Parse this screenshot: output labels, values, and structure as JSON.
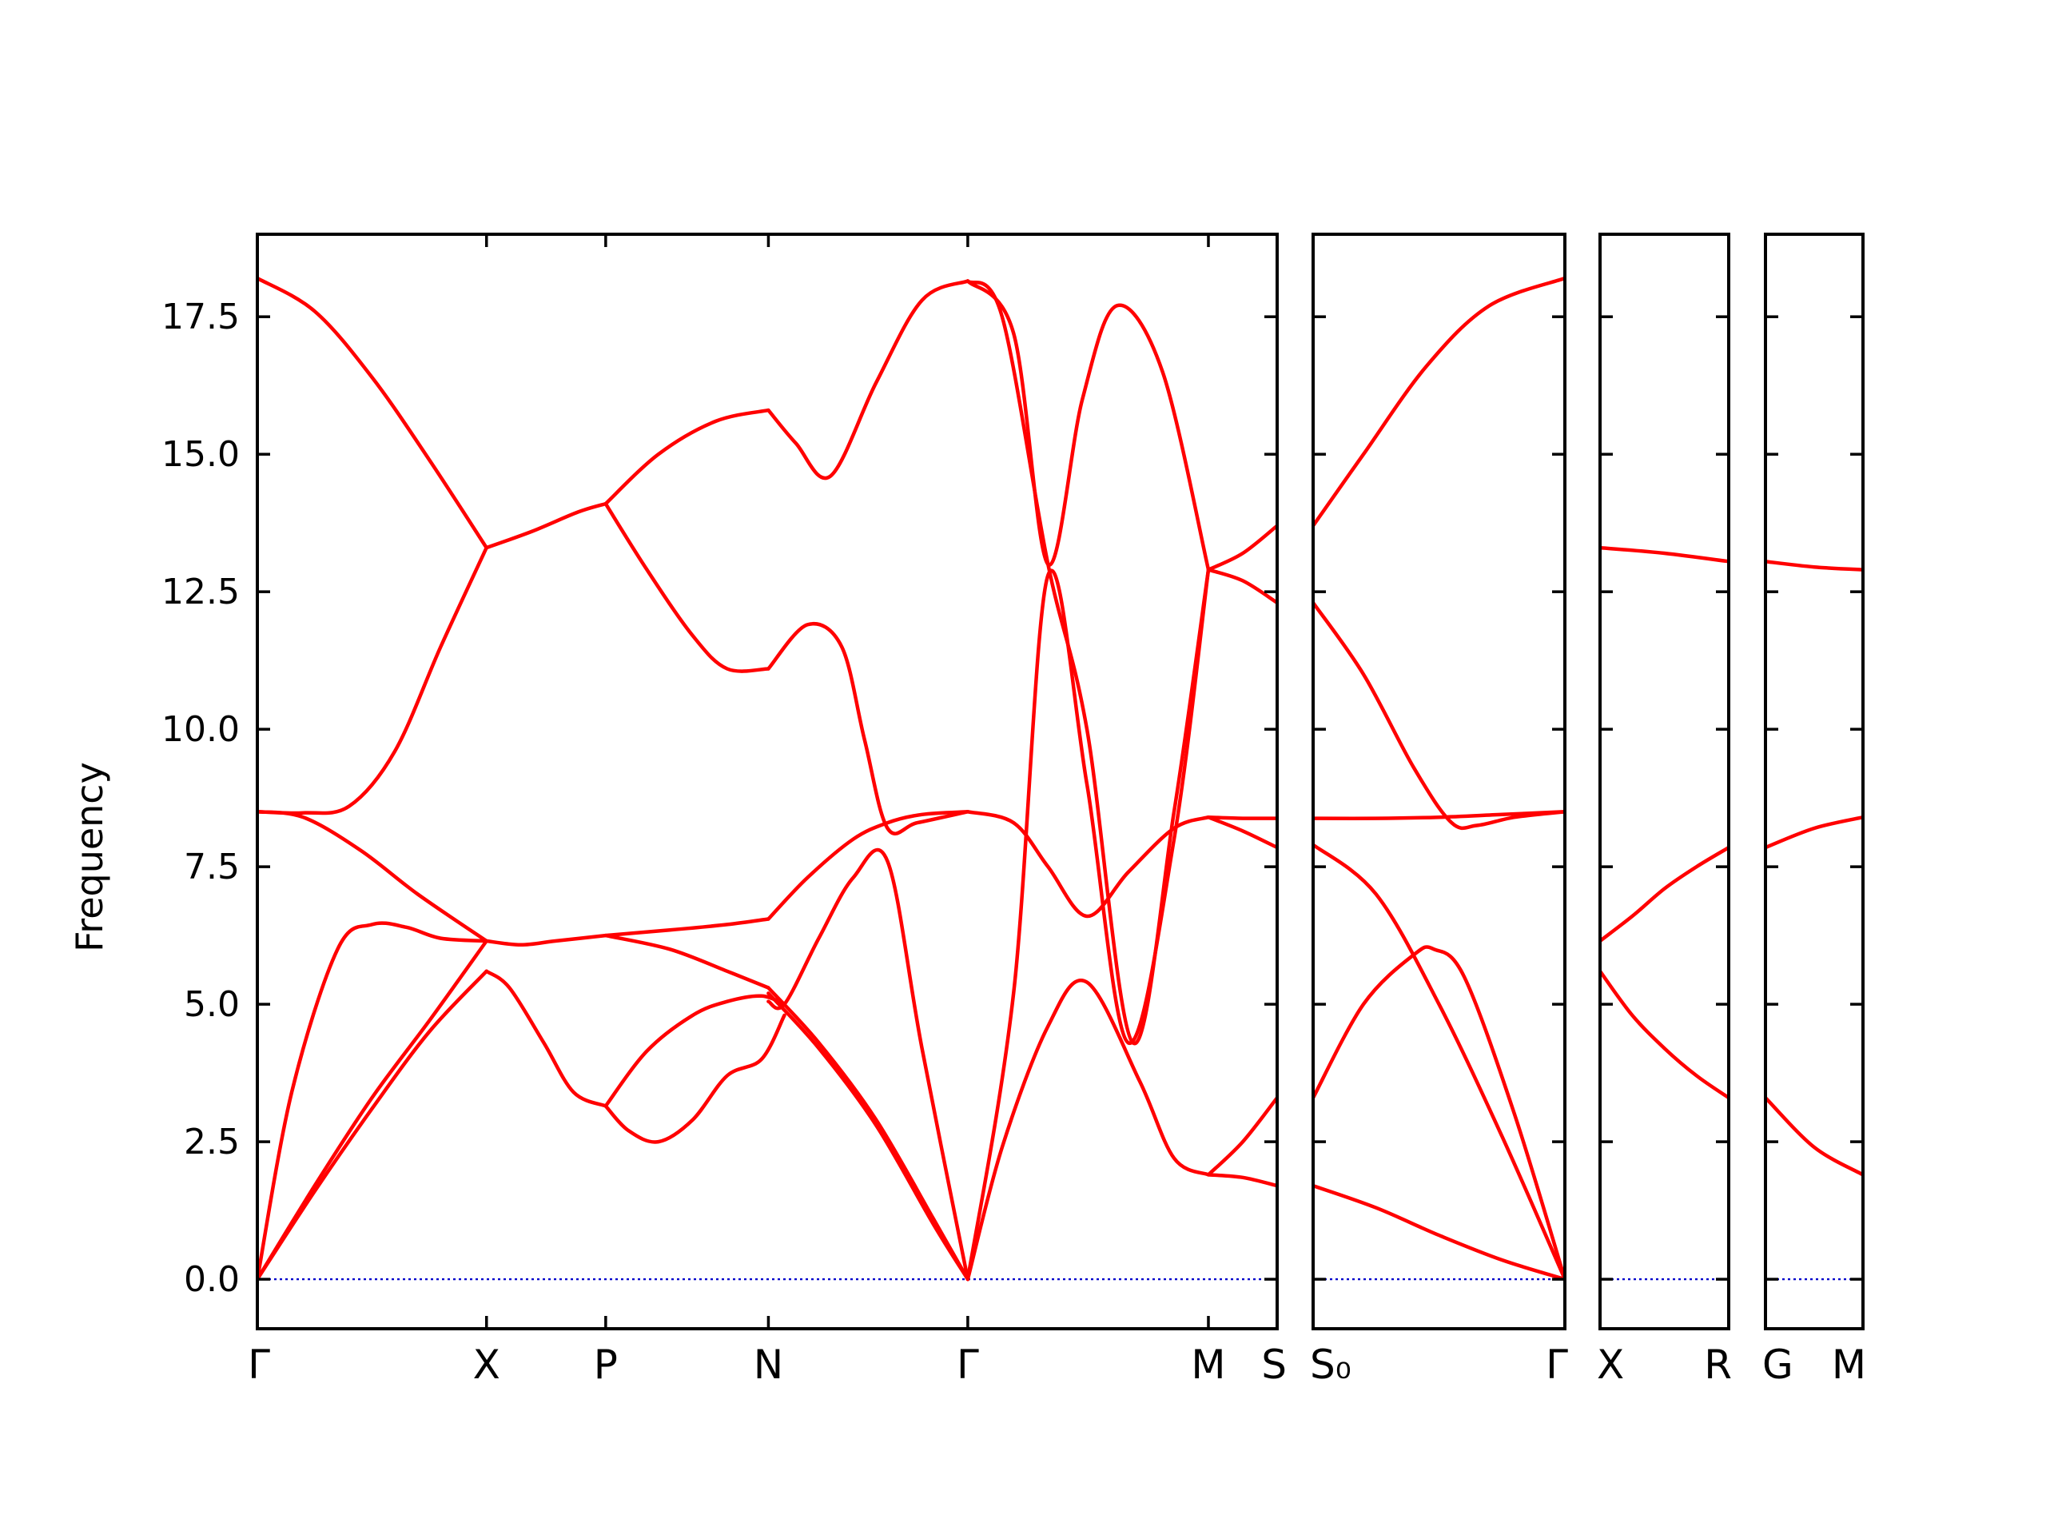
{
  "chart_data": {
    "type": "line",
    "ylabel": "Frequency",
    "xlabel": "",
    "title": "",
    "ylim": [
      -0.9,
      19.0
    ],
    "yticks": [
      "0.0",
      "2.5",
      "5.0",
      "7.5",
      "10.0",
      "12.5",
      "15.0",
      "17.5"
    ],
    "ytick_values": [
      0.0,
      2.5,
      5.0,
      7.5,
      10.0,
      12.5,
      15.0,
      17.5
    ],
    "grid": false,
    "colors": {
      "bands": "#ff0000",
      "zero_line": "#0000cc",
      "axes": "#000000"
    },
    "panels": [
      {
        "kpoint_labels": [
          "Γ",
          "X",
          "P",
          "N",
          "Γ",
          "M",
          "S"
        ],
        "kpoint_positions": [
          0,
          1.0,
          1.52,
          2.23,
          3.1,
          4.15,
          4.45
        ],
        "xlim": [
          0,
          4.45
        ],
        "bands": [
          {
            "x": [
              0,
              0.25,
              0.5,
              0.75,
              1.0
            ],
            "y": [
              0,
              1.6,
              3.1,
              4.5,
              5.6
            ]
          },
          {
            "x": [
              0,
              0.25,
              0.5,
              0.75,
              1.0
            ],
            "y": [
              0,
              1.7,
              3.3,
              4.7,
              6.15
            ]
          },
          {
            "x": [
              0,
              0.15,
              0.35,
              0.5,
              0.65,
              0.8,
              1.0
            ],
            "y": [
              0,
              3.4,
              6.0,
              6.45,
              6.4,
              6.2,
              6.15
            ]
          },
          {
            "x": [
              0,
              0.2,
              0.45,
              0.7,
              1.0
            ],
            "y": [
              8.5,
              8.4,
              7.8,
              7.0,
              6.15
            ]
          },
          {
            "x": [
              0,
              0.2,
              0.4,
              0.6,
              0.8,
              1.0
            ],
            "y": [
              8.5,
              8.48,
              8.6,
              9.6,
              11.5,
              13.3
            ]
          },
          {
            "x": [
              0,
              0.25,
              0.5,
              0.75,
              1.0
            ],
            "y": [
              18.2,
              17.6,
              16.4,
              14.9,
              13.3
            ]
          },
          {
            "x": [
              1.0,
              1.1,
              1.25,
              1.38,
              1.52
            ],
            "y": [
              5.6,
              5.3,
              4.3,
              3.4,
              3.15
            ]
          },
          {
            "x": [
              1.0,
              1.15,
              1.3,
              1.52
            ],
            "y": [
              6.15,
              6.08,
              6.15,
              6.25
            ]
          },
          {
            "x": [
              1.0,
              1.2,
              1.4,
              1.52
            ],
            "y": [
              13.3,
              13.6,
              13.95,
              14.1
            ]
          },
          {
            "x": [
              1.52,
              1.62,
              1.75,
              1.9,
              2.05,
              2.2,
              2.3
            ],
            "y": [
              3.15,
              2.7,
              2.5,
              2.9,
              3.7,
              4.0,
              4.8
            ]
          },
          {
            "x": [
              1.52,
              1.7,
              1.9,
              2.05,
              2.2,
              2.3
            ],
            "y": [
              3.15,
              4.15,
              4.8,
              5.05,
              5.15,
              5.0
            ]
          },
          {
            "x": [
              1.52,
              1.8,
              2.05,
              2.23
            ],
            "y": [
              6.25,
              6.0,
              5.6,
              5.3
            ]
          },
          {
            "x": [
              1.52,
              1.8,
              2.05,
              2.23
            ],
            "y": [
              6.25,
              6.35,
              6.45,
              6.55
            ]
          },
          {
            "x": [
              1.52,
              1.7,
              1.9,
              2.05,
              2.23
            ],
            "y": [
              14.1,
              12.9,
              11.7,
              11.1,
              11.1
            ]
          },
          {
            "x": [
              1.52,
              1.75,
              2.0,
              2.23
            ],
            "y": [
              14.1,
              15.0,
              15.6,
              15.8
            ]
          },
          {
            "x": [
              2.23,
              2.45,
              2.7,
              2.95,
              3.1
            ],
            "y": [
              5.2,
              4.2,
              2.8,
              1.0,
              0
            ]
          },
          {
            "x": [
              2.23,
              2.45,
              2.7,
              2.95,
              3.1
            ],
            "y": [
              5.3,
              4.3,
              2.9,
              1.1,
              0
            ]
          },
          {
            "x": [
              2.23,
              2.3,
              2.45,
              2.6,
              2.75,
              2.9,
              3.1
            ],
            "y": [
              5.05,
              5.0,
              6.2,
              7.3,
              7.6,
              4.2,
              0
            ]
          },
          {
            "x": [
              2.23,
              2.4,
              2.6,
              2.75,
              2.9,
              3.1
            ],
            "y": [
              6.55,
              7.3,
              8.0,
              8.3,
              8.45,
              8.5
            ]
          },
          {
            "x": [
              2.23,
              2.4,
              2.55,
              2.65,
              2.75,
              2.88,
              3.1
            ],
            "y": [
              11.1,
              11.9,
              11.5,
              9.8,
              8.2,
              8.3,
              8.5
            ]
          },
          {
            "x": [
              2.23,
              2.35,
              2.5,
              2.7,
              2.9,
              3.1
            ],
            "y": [
              15.8,
              15.2,
              14.6,
              16.3,
              17.8,
              18.15
            ]
          },
          {
            "x": [
              3.1,
              3.25,
              3.45,
              3.62,
              3.85,
              4.0,
              4.15
            ],
            "y": [
              0,
              2.4,
              4.6,
              5.4,
              3.6,
              2.2,
              1.9
            ]
          },
          {
            "x": [
              3.1,
              3.3,
              3.45,
              3.62,
              3.8,
              4.0,
              4.15
            ],
            "y": [
              8.5,
              8.3,
              7.5,
              6.6,
              7.4,
              8.2,
              8.4
            ]
          },
          {
            "x": [
              3.1,
              3.3,
              3.45,
              3.62,
              3.8,
              4.0,
              4.15
            ],
            "y": [
              0,
              5.2,
              12.8,
              9.0,
              4.3,
              8.0,
              12.9
            ]
          },
          {
            "x": [
              3.1,
              3.25,
              3.45,
              3.62,
              3.82,
              4.0,
              4.15
            ],
            "y": [
              18.15,
              17.5,
              13.0,
              10.0,
              4.3,
              8.5,
              12.9
            ]
          },
          {
            "x": [
              3.1,
              3.3,
              3.45,
              3.6,
              3.75,
              3.95,
              4.15
            ],
            "y": [
              18.15,
              17.2,
              13.0,
              16.0,
              17.7,
              16.5,
              12.9
            ]
          },
          {
            "x": [
              4.15,
              4.3,
              4.45
            ],
            "y": [
              1.9,
              1.85,
              1.7
            ]
          },
          {
            "x": [
              4.15,
              4.3,
              4.45
            ],
            "y": [
              1.9,
              2.5,
              3.3
            ]
          },
          {
            "x": [
              4.15,
              4.3,
              4.45
            ],
            "y": [
              8.4,
              8.15,
              7.85
            ]
          },
          {
            "x": [
              4.15,
              4.3,
              4.45
            ],
            "y": [
              8.4,
              8.38,
              8.38
            ]
          },
          {
            "x": [
              4.15,
              4.3,
              4.45
            ],
            "y": [
              12.9,
              12.7,
              12.3
            ]
          },
          {
            "x": [
              4.15,
              4.3,
              4.45
            ],
            "y": [
              12.9,
              13.2,
              13.7
            ]
          }
        ]
      },
      {
        "kpoint_labels": [
          "S₀",
          "Γ"
        ],
        "kpoint_positions": [
          0,
          1.0
        ],
        "xlim": [
          0,
          1.0
        ],
        "bands": [
          {
            "x": [
              0,
              0.25,
              0.5,
              0.75,
              1.0
            ],
            "y": [
              1.7,
              1.3,
              0.8,
              0.35,
              0
            ]
          },
          {
            "x": [
              0,
              0.25,
              0.5,
              0.75,
              1.0
            ],
            "y": [
              7.9,
              7.0,
              5.0,
              2.6,
              0
            ]
          },
          {
            "x": [
              0,
              0.2,
              0.4,
              0.48,
              0.6,
              0.8,
              1.0
            ],
            "y": [
              3.3,
              5.0,
              5.9,
              6.0,
              5.5,
              3.0,
              0
            ]
          },
          {
            "x": [
              0,
              0.25,
              0.5,
              0.75,
              1.0
            ],
            "y": [
              8.38,
              8.38,
              8.4,
              8.45,
              8.5
            ]
          },
          {
            "x": [
              0,
              0.2,
              0.4,
              0.55,
              0.65,
              0.8,
              1.0
            ],
            "y": [
              12.3,
              11.0,
              9.3,
              8.3,
              8.25,
              8.4,
              8.5
            ]
          },
          {
            "x": [
              0,
              0.2,
              0.45,
              0.7,
              1.0
            ],
            "y": [
              13.7,
              15.0,
              16.6,
              17.7,
              18.2
            ]
          }
        ]
      },
      {
        "kpoint_labels": [
          "X",
          "R"
        ],
        "kpoint_positions": [
          0,
          1.0
        ],
        "xlim": [
          0,
          1.0
        ],
        "bands": [
          {
            "x": [
              0,
              0.25,
              0.5,
              0.75,
              1.0
            ],
            "y": [
              5.6,
              4.8,
              4.2,
              3.7,
              3.3
            ]
          },
          {
            "x": [
              0,
              0.25,
              0.5,
              0.75,
              1.0
            ],
            "y": [
              6.15,
              6.6,
              7.1,
              7.5,
              7.85
            ]
          },
          {
            "x": [
              0,
              0.5,
              1.0
            ],
            "y": [
              13.3,
              13.2,
              13.05
            ]
          }
        ]
      },
      {
        "kpoint_labels": [
          "G",
          "M"
        ],
        "kpoint_positions": [
          0,
          1.0
        ],
        "xlim": [
          0,
          1.0
        ],
        "bands": [
          {
            "x": [
              0,
              0.5,
              1.0
            ],
            "y": [
              3.3,
              2.4,
              1.9
            ]
          },
          {
            "x": [
              0,
              0.5,
              1.0
            ],
            "y": [
              7.85,
              8.2,
              8.4
            ]
          },
          {
            "x": [
              0,
              0.5,
              1.0
            ],
            "y": [
              13.05,
              12.95,
              12.9
            ]
          }
        ]
      }
    ]
  }
}
